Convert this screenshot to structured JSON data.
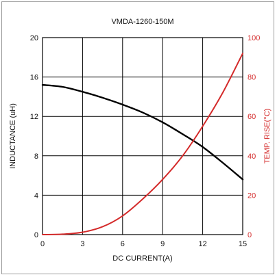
{
  "chart_data": {
    "type": "line",
    "title": "VMDA-1260-150M",
    "xlabel": "DC CURRENT(A)",
    "ylabel": "INDUCTANCE (uH)",
    "y2label": "TEMP. RISE(°C)",
    "xlim": [
      0,
      15
    ],
    "ylim": [
      0,
      20
    ],
    "y2lim": [
      0,
      100
    ],
    "x_ticks": [
      "0",
      "3",
      "6",
      "9",
      "12",
      "15"
    ],
    "y_ticks": [
      "0",
      "4",
      "8",
      "12",
      "16",
      "20"
    ],
    "y2_ticks": [
      "0",
      "20",
      "40",
      "60",
      "80",
      "100"
    ],
    "grid": true,
    "series": [
      {
        "axis": "left",
        "color": "#000000",
        "x": [
          0,
          1.5,
          3,
          4.5,
          6,
          7.5,
          9,
          10.5,
          12,
          13.5,
          15
        ],
        "values": [
          15.2,
          15.0,
          14.5,
          13.9,
          13.2,
          12.4,
          11.4,
          10.2,
          8.9,
          7.3,
          5.6
        ]
      },
      {
        "axis": "right",
        "color": "#d42a2a",
        "x": [
          0,
          1.5,
          3,
          4.5,
          6,
          7.5,
          9,
          10.5,
          12,
          13.5,
          15
        ],
        "values": [
          0,
          0.2,
          1.2,
          4,
          9.5,
          18,
          28,
          40,
          55,
          72,
          92
        ]
      }
    ]
  }
}
